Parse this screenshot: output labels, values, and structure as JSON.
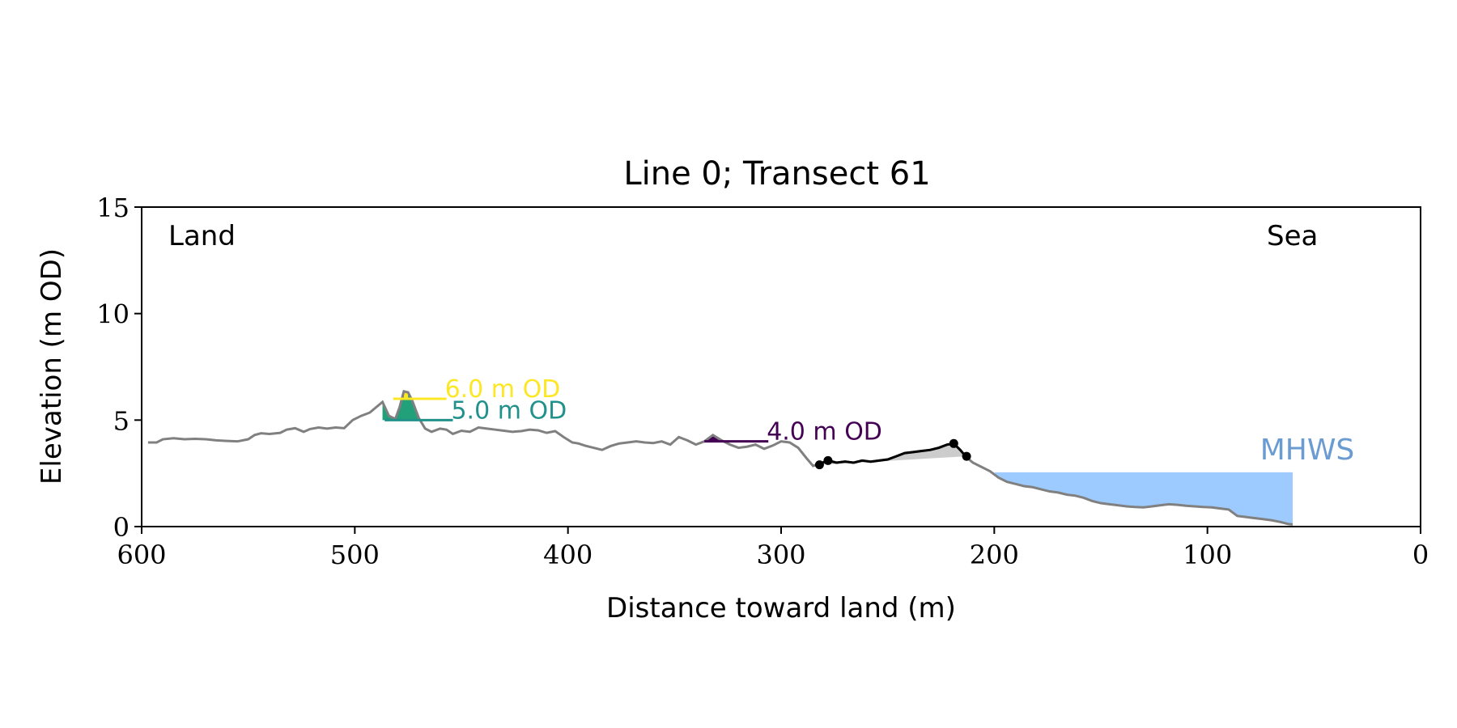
{
  "chart_data": {
    "type": "line",
    "title": "Line 0; Transect 61",
    "xlabel": "Distance toward land (m)",
    "ylabel": "Elevation (m OD)",
    "xlim": [
      600,
      0
    ],
    "ylim": [
      0,
      15
    ],
    "x_ticks": [
      600,
      500,
      400,
      300,
      200,
      100,
      0
    ],
    "y_ticks": [
      0,
      5,
      10,
      15
    ],
    "x_tick_labels": [
      "600",
      "500",
      "400",
      "300",
      "200",
      "100",
      "0"
    ],
    "y_tick_labels": [
      "0",
      "5",
      "10",
      "15"
    ],
    "grid": false,
    "corner_labels": {
      "left": "Land",
      "right": "Sea"
    },
    "colors": {
      "profile": "#808080",
      "highlight": "#000000",
      "mhws_fill": "#9ecbff",
      "mhws_text": "#6a9bd1",
      "level_6": "#fde725",
      "level_5": "#21918c",
      "level_4": "#440154",
      "peak_fill_5": "#21a07a",
      "dune_fill": "#cccccc"
    },
    "series": [
      {
        "x": [
          597,
          593,
          590,
          585,
          580,
          575,
          570,
          565,
          560,
          555,
          550,
          547,
          544,
          540,
          535,
          532,
          528,
          524,
          521,
          517,
          513,
          509,
          505,
          501,
          497,
          493,
          490,
          487,
          484,
          481,
          479,
          477,
          475,
          473,
          470,
          467,
          464,
          460,
          457,
          454,
          450,
          446,
          442,
          438,
          434,
          430,
          426,
          422,
          418,
          414,
          410,
          406,
          402,
          398,
          395,
          392,
          388,
          384,
          380,
          376,
          372,
          368,
          364,
          360,
          356,
          352,
          348,
          344,
          340,
          336,
          332,
          328,
          324,
          320,
          316,
          312,
          308,
          304,
          300,
          296,
          292,
          288,
          285,
          282,
          278,
          274,
          270,
          266,
          262,
          258,
          254,
          250,
          246,
          242,
          238,
          234,
          230,
          226,
          222,
          219,
          216,
          213,
          210,
          206,
          202,
          198,
          194,
          190,
          186,
          182,
          178,
          174,
          170,
          166,
          162,
          158,
          154,
          150,
          146,
          142,
          138,
          134,
          130,
          126,
          122,
          118,
          114,
          110,
          106,
          102,
          98,
          94,
          90,
          86,
          82,
          78,
          74,
          70,
          66,
          62,
          60
        ],
        "y": [
          3.95,
          3.95,
          4.1,
          4.15,
          4.1,
          4.12,
          4.1,
          4.05,
          4.02,
          4.0,
          4.1,
          4.3,
          4.38,
          4.35,
          4.4,
          4.55,
          4.62,
          4.45,
          4.58,
          4.65,
          4.6,
          4.65,
          4.62,
          5.0,
          5.2,
          5.35,
          5.6,
          5.85,
          5.2,
          5.05,
          5.6,
          6.35,
          6.3,
          5.9,
          5.1,
          4.6,
          4.45,
          4.6,
          4.55,
          4.35,
          4.5,
          4.45,
          4.65,
          4.6,
          4.55,
          4.5,
          4.45,
          4.48,
          4.55,
          4.52,
          4.4,
          4.48,
          4.2,
          3.95,
          3.9,
          3.8,
          3.7,
          3.6,
          3.78,
          3.9,
          3.95,
          4.0,
          3.95,
          3.92,
          4.0,
          3.85,
          4.2,
          4.05,
          3.85,
          4.0,
          4.3,
          4.05,
          3.85,
          3.7,
          3.75,
          3.85,
          3.65,
          3.8,
          4.0,
          3.95,
          3.7,
          3.2,
          2.85,
          2.95,
          3.1,
          3.0,
          3.05,
          3.0,
          3.1,
          3.05,
          3.1,
          3.15,
          3.3,
          3.45,
          3.5,
          3.55,
          3.6,
          3.7,
          3.85,
          3.9,
          3.6,
          3.25,
          3.0,
          2.8,
          2.6,
          2.3,
          2.1,
          2.0,
          1.9,
          1.85,
          1.75,
          1.65,
          1.6,
          1.5,
          1.45,
          1.35,
          1.2,
          1.1,
          1.05,
          1.0,
          0.95,
          0.92,
          0.9,
          0.95,
          1.0,
          1.05,
          1.02,
          0.98,
          0.95,
          0.92,
          0.9,
          0.85,
          0.8,
          0.5,
          0.45,
          0.4,
          0.35,
          0.3,
          0.22,
          0.12,
          0.1
        ]
      }
    ],
    "highlight_segment": {
      "x_from": 282,
      "x_to": 213,
      "points": [
        [
          282,
          2.9
        ],
        [
          278,
          3.1
        ],
        [
          219,
          3.9
        ],
        [
          213,
          3.3
        ]
      ]
    },
    "dune_fill_baseline": [
      [
        282,
        2.9
      ],
      [
        213,
        3.3
      ]
    ],
    "mhws": {
      "label": "MHWS",
      "elevation": 2.55,
      "x_from": 200,
      "x_to": 60
    },
    "levels": [
      {
        "label": "6.0 m OD",
        "elevation": 6.0,
        "x_from": 482,
        "x_to": 457,
        "color_key": "level_6"
      },
      {
        "label": "5.0 m OD",
        "elevation": 5.0,
        "x_from": 486,
        "x_to": 454,
        "color_key": "level_5"
      },
      {
        "label": "4.0 m OD",
        "elevation": 4.0,
        "x_from": 336,
        "x_to": 306,
        "color_key": "level_4"
      }
    ]
  }
}
